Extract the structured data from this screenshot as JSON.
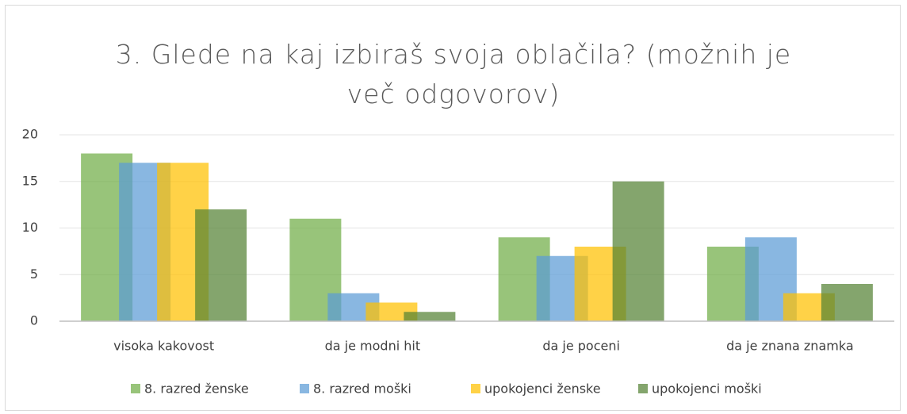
{
  "chart_data": {
    "type": "bar",
    "title": "3. Glede na kaj izbiraš svoja oblačila? (možnih je več odgovorov)",
    "categories": [
      "visoka kakovost",
      "da je modni hit",
      "da je poceni",
      "da je znana znamka"
    ],
    "series": [
      {
        "name": "8. razred ženske",
        "color": "#70ad47",
        "values": [
          18,
          11,
          9,
          8
        ]
      },
      {
        "name": "8. razred moški",
        "color": "#5b9bd5",
        "values": [
          17,
          3,
          7,
          9
        ]
      },
      {
        "name": "upokojenci ženske",
        "color": "#ffc000",
        "values": [
          17,
          2,
          8,
          3
        ]
      },
      {
        "name": "upokojenci moški",
        "color": "#548235",
        "values": [
          12,
          1,
          15,
          4
        ]
      }
    ],
    "ylim": [
      0,
      20
    ],
    "yticks": [
      0,
      5,
      10,
      15,
      20
    ],
    "grid": true,
    "legend": "bottom"
  }
}
